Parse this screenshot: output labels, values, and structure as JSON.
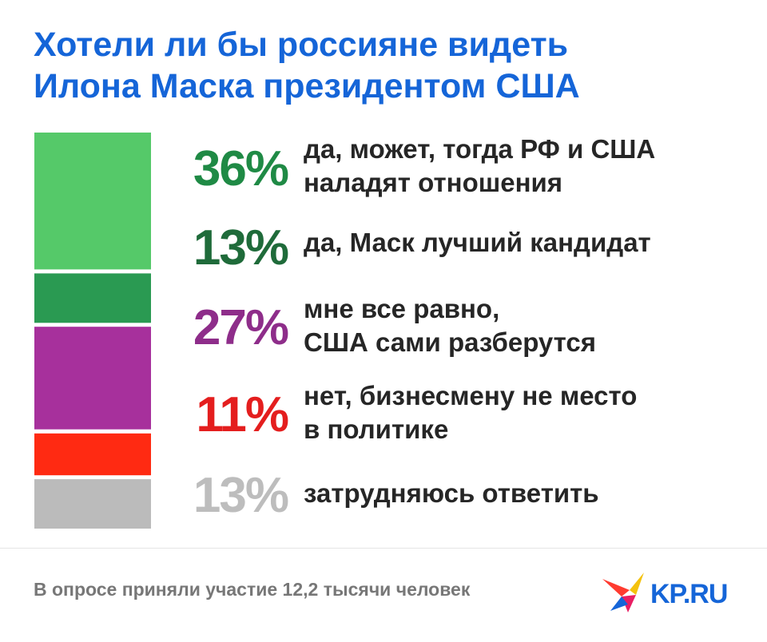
{
  "title": {
    "line1": "Хотели ли бы россияне видеть",
    "line2": "Илона Маска президентом США"
  },
  "chart_data": {
    "type": "bar",
    "stacked": true,
    "orientation": "vertical",
    "unit": "%",
    "categories": [
      "да, может, тогда РФ и США наладят отношения",
      "да, Маск лучший кандидат",
      "мне все равно, США сами разберутся",
      "нет, бизнесмену не место в политике",
      "затрудняюсь ответить"
    ],
    "values": [
      36,
      13,
      27,
      11,
      13
    ],
    "colors": [
      "#55c969",
      "#2a9a52",
      "#a7309c",
      "#ff2a12",
      "#bbbbbb"
    ]
  },
  "items": [
    {
      "pct": "36%",
      "line1": "да, может, тогда РФ и США",
      "line2": "наладят отношения",
      "pct_color": "#1f8a45"
    },
    {
      "pct": "13%",
      "line1": "да, Маск лучший кандидат",
      "line2": "",
      "pct_color": "#1f6b3a"
    },
    {
      "pct": "27%",
      "line1": "мне все равно,",
      "line2": "США сами разберутся",
      "pct_color": "#8e2d8a"
    },
    {
      "pct": "11%",
      "line1": "нет, бизнесмену не место",
      "line2": "в политике",
      "pct_color": "#e41e1e"
    },
    {
      "pct": "13%",
      "line1": "затрудняюсь ответить",
      "line2": "",
      "pct_color": "#bdbdbd"
    }
  ],
  "footnote": "В опросе приняли участие 12,2 тысячи человек",
  "logo": {
    "text": "KP.RU",
    "icon": "kp-bird-logo-icon"
  }
}
